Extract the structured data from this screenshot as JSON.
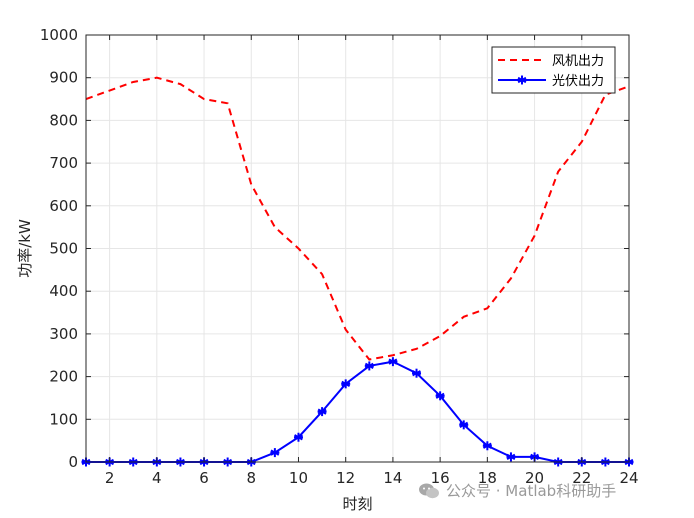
{
  "chart_data": {
    "type": "line",
    "xlabel": "时刻",
    "ylabel": "功率/kW",
    "xlim": [
      1,
      24
    ],
    "ylim": [
      0,
      1000
    ],
    "xticks": [
      2,
      4,
      6,
      8,
      10,
      12,
      14,
      16,
      18,
      20,
      22,
      24
    ],
    "yticks": [
      0,
      100,
      200,
      300,
      400,
      500,
      600,
      700,
      800,
      900,
      1000
    ],
    "grid": true,
    "legend_position": "top-right",
    "x": [
      1,
      2,
      3,
      4,
      5,
      6,
      7,
      8,
      9,
      10,
      11,
      12,
      13,
      14,
      15,
      16,
      17,
      18,
      19,
      20,
      21,
      22,
      23,
      24
    ],
    "series": [
      {
        "name": "风机出力",
        "color": "#ff0000",
        "line_style": "dashed",
        "marker": "none",
        "values": [
          850,
          870,
          890,
          900,
          885,
          850,
          840,
          650,
          550,
          500,
          440,
          310,
          240,
          250,
          265,
          295,
          340,
          360,
          430,
          530,
          680,
          750,
          860,
          880
        ]
      },
      {
        "name": "光伏出力",
        "color": "#0000ff",
        "line_style": "solid",
        "marker": "asterisk",
        "values": [
          0,
          0,
          0,
          0,
          0,
          0,
          0,
          0,
          22,
          58,
          118,
          183,
          225,
          235,
          208,
          155,
          87,
          38,
          12,
          12,
          0,
          0,
          0,
          0
        ]
      }
    ]
  },
  "watermark": {
    "text": "公众号 · Matlab科研助手",
    "icon": "wechat-icon"
  }
}
